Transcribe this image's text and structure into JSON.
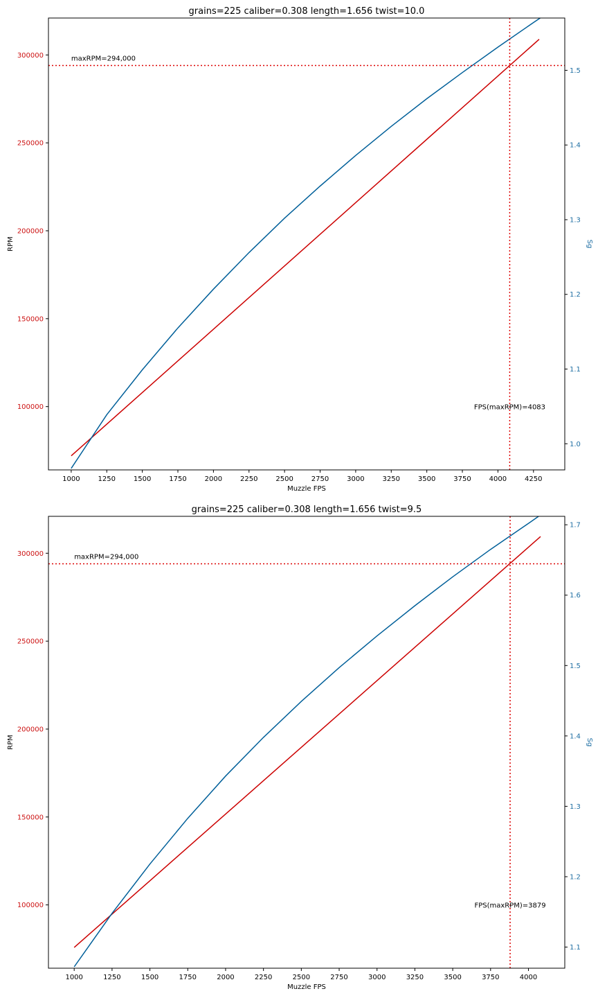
{
  "colors": {
    "rpm": "#cc0000",
    "sg": "#005f99",
    "rpm_tick": "#cc1111",
    "sg_tick": "#1f6fa3",
    "ref": "#dd0000",
    "axis": "#000000"
  },
  "chart_data": [
    {
      "type": "line",
      "title": "grains=225 caliber=0.308 length=1.656 twist=10.0",
      "xlabel": "Muzzle FPS",
      "ylabel": "RPM",
      "y2label": "Sg",
      "xlim": [
        840,
        4470
      ],
      "ylim": [
        64000,
        321000
      ],
      "y2lim": [
        0.965,
        1.57
      ],
      "xticks": [
        1000,
        1250,
        1500,
        1750,
        2000,
        2250,
        2500,
        2750,
        3000,
        3250,
        3500,
        3750,
        4000,
        4250
      ],
      "yticks": [
        100000,
        150000,
        200000,
        250000,
        300000
      ],
      "y2ticks": [
        1.0,
        1.1,
        1.2,
        1.3,
        1.4,
        1.5
      ],
      "y2tick_labels": [
        "1.0",
        "1.1",
        "1.2",
        "1.3",
        "1.4",
        "1.5"
      ],
      "grid": false,
      "series": [
        {
          "axis": "left",
          "x": [
            1000,
            4290
          ],
          "values": [
            72000,
            308900
          ]
        },
        {
          "axis": "right",
          "x": [
            1000,
            1250,
            1500,
            1750,
            2000,
            2250,
            2500,
            2750,
            3000,
            3250,
            3500,
            3750,
            4000,
            4250,
            4320
          ],
          "values": [
            0.967,
            1.039,
            1.099,
            1.155,
            1.207,
            1.256,
            1.302,
            1.345,
            1.386,
            1.425,
            1.462,
            1.497,
            1.531,
            1.564,
            1.573
          ]
        }
      ],
      "max_rpm": 294000,
      "max_rpm_label": "maxRPM=294,000",
      "fps_at_max": 4083,
      "fps_at_max_label": "FPS(maxRPM)=4083",
      "fps_label_y": 100000
    },
    {
      "type": "line",
      "title": "grains=225 caliber=0.308 length=1.656 twist=9.5",
      "xlabel": "Muzzle FPS",
      "ylabel": "RPM",
      "y2label": "Sg",
      "xlim": [
        830,
        4240
      ],
      "ylim": [
        64000,
        321000
      ],
      "y2lim": [
        1.07,
        1.712
      ],
      "xticks": [
        1000,
        1250,
        1500,
        1750,
        2000,
        2250,
        2500,
        2750,
        3000,
        3250,
        3500,
        3750,
        4000
      ],
      "yticks": [
        100000,
        150000,
        200000,
        250000,
        300000
      ],
      "y2ticks": [
        1.1,
        1.2,
        1.3,
        1.4,
        1.5,
        1.6,
        1.7
      ],
      "y2tick_labels": [
        "1.1",
        "1.2",
        "1.3",
        "1.4",
        "1.5",
        "1.6",
        "1.7"
      ],
      "grid": false,
      "series": [
        {
          "axis": "left",
          "x": [
            1000,
            4080
          ],
          "values": [
            75800,
            309500
          ]
        },
        {
          "axis": "right",
          "x": [
            1000,
            1250,
            1500,
            1750,
            2000,
            2250,
            2500,
            2750,
            3000,
            3250,
            3500,
            3750,
            4000,
            4080
          ],
          "values": [
            1.072,
            1.148,
            1.218,
            1.283,
            1.343,
            1.398,
            1.449,
            1.497,
            1.542,
            1.585,
            1.626,
            1.665,
            1.702,
            1.714
          ]
        }
      ],
      "max_rpm": 294000,
      "max_rpm_label": "maxRPM=294,000",
      "fps_at_max": 3879,
      "fps_at_max_label": "FPS(maxRPM)=3879",
      "fps_label_y": 100000
    }
  ]
}
